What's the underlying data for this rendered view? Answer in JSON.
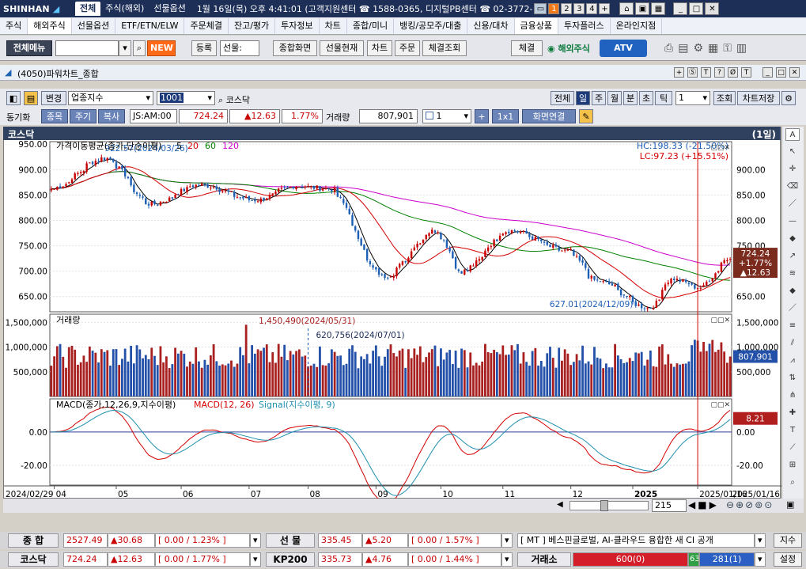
{
  "topbar": {
    "logo": "SHINHAN",
    "tabs": [
      "전체",
      "주식(해외)",
      "선물옵션"
    ],
    "info": "1월 16일(목) 오후 4:41:01 (고객지원센터 ☎ 1588-0365, 디지털PB센터 ☎ 02-3772-",
    "workspaces": [
      "1",
      "2",
      "3",
      "4",
      "+"
    ]
  },
  "menu": [
    "주식",
    "해외주식",
    "선물옵션",
    "ETF/ETN/ELW",
    "주문체결",
    "잔고/평가",
    "투자정보",
    "차트",
    "종합/미니",
    "뱅킹/공모주/대출",
    "신용/대차",
    "금융상품",
    "투자플러스",
    "온라인지점"
  ],
  "toolbar": {
    "all_menu": "전체메뉴",
    "new": "NEW",
    "register": "등록",
    "register_select": "선물:",
    "btn_screen": "종합화면",
    "btn_futures": "선물현재",
    "btn_chart": "차트",
    "btn_order": "주문",
    "btn_fill": "체결조회",
    "btn_fill2": "체결",
    "overseas": "해외주식",
    "atv": "ATV"
  },
  "window": {
    "title": "(4050)파워차트_종합",
    "buttons": [
      "+",
      "Ⓢ",
      "T",
      "?",
      "Ø",
      "T"
    ]
  },
  "controls": {
    "change": "변경",
    "index_type": "업종지수",
    "code": "1001",
    "name": "코스닥",
    "period_tabs": [
      "전체",
      "일",
      "주",
      "월",
      "분",
      "초",
      "틱"
    ],
    "period_active": "일",
    "count": "1",
    "lookup": "조회",
    "save": "차트저장",
    "sync": "동기화",
    "item": "종목",
    "cycle": "주기",
    "copy": "복사",
    "time": "JS:AM:00",
    "price": "724.24",
    "change_val": "▲12.63",
    "change_pct": "1.77%",
    "volume_label": "거래량",
    "volume": "807,901",
    "split": "1",
    "layout": "1x1",
    "link": "화면연결"
  },
  "chart": {
    "title": "코스닥",
    "period_label": "(1일)",
    "price_panel_label": "가격이동평균(종가,단순이평)",
    "ma_labels": [
      {
        "text": "5",
        "color": "#000000"
      },
      {
        "text": "20",
        "color": "#d40000"
      },
      {
        "text": "60",
        "color": "#008000"
      },
      {
        "text": "120",
        "color": "#cc00cc"
      }
    ],
    "hc_label": "HC:198.33 (-21.50%)",
    "lc_label": "LC:97.23 (+15.51%)",
    "high_label": "922.57(2024/03/26)",
    "low_label": "627.01(2024/12/09)",
    "price_axis": [
      "950.00",
      "900.00",
      "850.00",
      "800.00",
      "750.00",
      "700.00",
      "650.00"
    ],
    "price_axis_right": [
      "900.00",
      "850.00",
      "800.00",
      "750.00",
      "700.00",
      "650.00"
    ],
    "price_tag": [
      "724.24",
      "+1.77%",
      "▲12.63"
    ],
    "volume_panel_label": "거래량",
    "vol_high_label": "1,450,490(2024/05/31)",
    "vol_mark_label": "620,756(2024/07/01)",
    "volume_axis": [
      "1,500,000",
      "1,000,000",
      "500,000"
    ],
    "volume_tag": "807,901",
    "macd_panel_label": "MACD(종가,12,26,9,지수이평)",
    "macd_label": "MACD(12, 26)",
    "signal_label": "Signal(지수이평, 9)",
    "macd_axis": [
      "0.00",
      "-20.00"
    ],
    "macd_tag": "8.21",
    "x_labels": [
      "2024/02/29",
      "04",
      "05",
      "06",
      "07",
      "08",
      "09",
      "10",
      "11",
      "12",
      "2025",
      "2025/01/16"
    ]
  },
  "chart_data": {
    "type": "candlestick",
    "title": "코스닥",
    "ylim": [
      620,
      955
    ],
    "ma_periods": [
      5,
      20,
      60,
      120
    ],
    "anchors": [
      {
        "date": "2024-02-29",
        "close": 862
      },
      {
        "date": "2024-03-26",
        "close": 922.57
      },
      {
        "date": "2024-04-17",
        "close": 832
      },
      {
        "date": "2024-05-10",
        "close": 870
      },
      {
        "date": "2024-06-05",
        "close": 840
      },
      {
        "date": "2024-06-25",
        "close": 868
      },
      {
        "date": "2024-07-10",
        "close": 862
      },
      {
        "date": "2024-08-05",
        "close": 690
      },
      {
        "date": "2024-08-30",
        "close": 780
      },
      {
        "date": "2024-09-11",
        "close": 700
      },
      {
        "date": "2024-10-04",
        "close": 780
      },
      {
        "date": "2024-10-31",
        "close": 740
      },
      {
        "date": "2024-11-15",
        "close": 680
      },
      {
        "date": "2024-12-09",
        "close": 627.01
      },
      {
        "date": "2024-12-20",
        "close": 685
      },
      {
        "date": "2025-01-02",
        "close": 668
      },
      {
        "date": "2025-01-16",
        "close": 724.24
      }
    ],
    "volume": {
      "max": 1450490,
      "max_date": "2024-05-31",
      "last": 807901
    },
    "macd": {
      "last": 8.21
    }
  },
  "scroll": {
    "count": "215"
  },
  "bottom": {
    "row1": {
      "label1": "종  합",
      "val1": "2527.49",
      "chg1": "▲30.68",
      "pct1": "[ 0.00  / 1.23% ]",
      "label2": "선  물",
      "val2": "335.45",
      "chg2": "▲5.20",
      "pct2": "[ 0.00  / 1.57% ]",
      "news": "[ MT ] 베스핀글로벌, AI-클라우드 융합한 새 CI 공개",
      "btn": "지수"
    },
    "row2": {
      "label1": "코스닥",
      "val1": "724.24",
      "chg1": "▲12.63",
      "pct1": "[ 0.00  / 1.77% ]",
      "label2": "KP200",
      "val2": "335.73",
      "chg2": "▲4.76",
      "pct2": "[ 0.00  / 1.44% ]",
      "label3": "거래소",
      "bar1": "600(0)",
      "bar_mid": "63",
      "bar2": "281(1)",
      "btn": "설정"
    }
  },
  "colors": {
    "up": "#c80000",
    "down": "#1c5fb5",
    "ma20": "#d40000",
    "ma60": "#008000",
    "ma120": "#cc00cc"
  }
}
